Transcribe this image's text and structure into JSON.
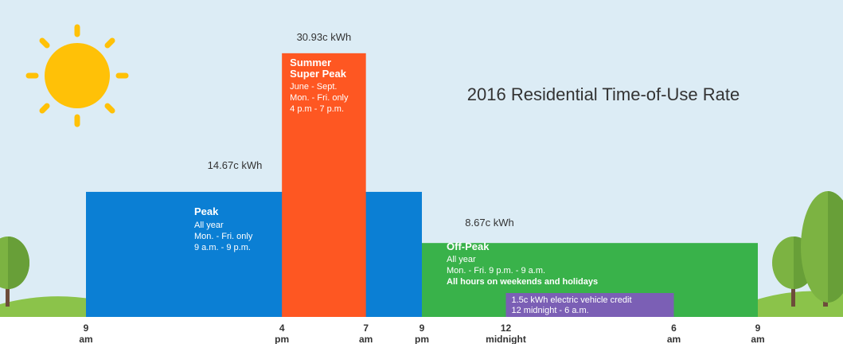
{
  "colors": {
    "sky": "#dcecf5",
    "ground": "#8bc34a",
    "sun": "#ffc107",
    "peak": "#0b7fd4",
    "super_peak": "#fe5722",
    "off_peak": "#39b24a",
    "ev_credit": "#7b5fb5",
    "title": "#333333"
  },
  "chart_data": {
    "type": "bar",
    "title": "2016 Residential Time-of-Use Rate",
    "unit": "c kWh",
    "ylim": [
      0,
      34
    ],
    "x_ticks": [
      {
        "hour": 0,
        "top": "9",
        "bottom": "am"
      },
      {
        "hour": 7,
        "top": "4",
        "bottom": "pm"
      },
      {
        "hour": 10,
        "top": "7",
        "bottom": "am"
      },
      {
        "hour": 12,
        "top": "9",
        "bottom": "pm"
      },
      {
        "hour": 15,
        "top": "12",
        "bottom": "midnight"
      },
      {
        "hour": 21,
        "top": "6",
        "bottom": "am"
      },
      {
        "hour": 24,
        "top": "9",
        "bottom": "am"
      }
    ],
    "bars": [
      {
        "name": "Peak",
        "start_hour": 0,
        "end_hour": 12,
        "value": 14.67,
        "value_label": "14.67c kWh",
        "lines": [
          "All year",
          "Mon. - Fri. only",
          "9 a.m. - 9 p.m."
        ]
      },
      {
        "name": "Summer Super Peak",
        "name_lines": [
          "Summer",
          "Super Peak"
        ],
        "start_hour": 7,
        "end_hour": 10,
        "value": 30.93,
        "value_label": "30.93c kWh",
        "lines": [
          "June - Sept.",
          "Mon. - Fri. only",
          "4 p.m - 7 p.m."
        ]
      },
      {
        "name": "Off-Peak",
        "start_hour": 12,
        "end_hour": 24,
        "value": 8.67,
        "value_label": "8.67c kWh",
        "lines": [
          "All year",
          "Mon. - Fri. 9 p.m. - 9 a.m."
        ],
        "bold_line": "All hours on weekends and holidays"
      }
    ],
    "credit": {
      "label": "1.5c kWh electric vehicle credit",
      "hours": "12 midnight - 6 a.m.",
      "start_hour": 15,
      "end_hour": 21
    }
  }
}
